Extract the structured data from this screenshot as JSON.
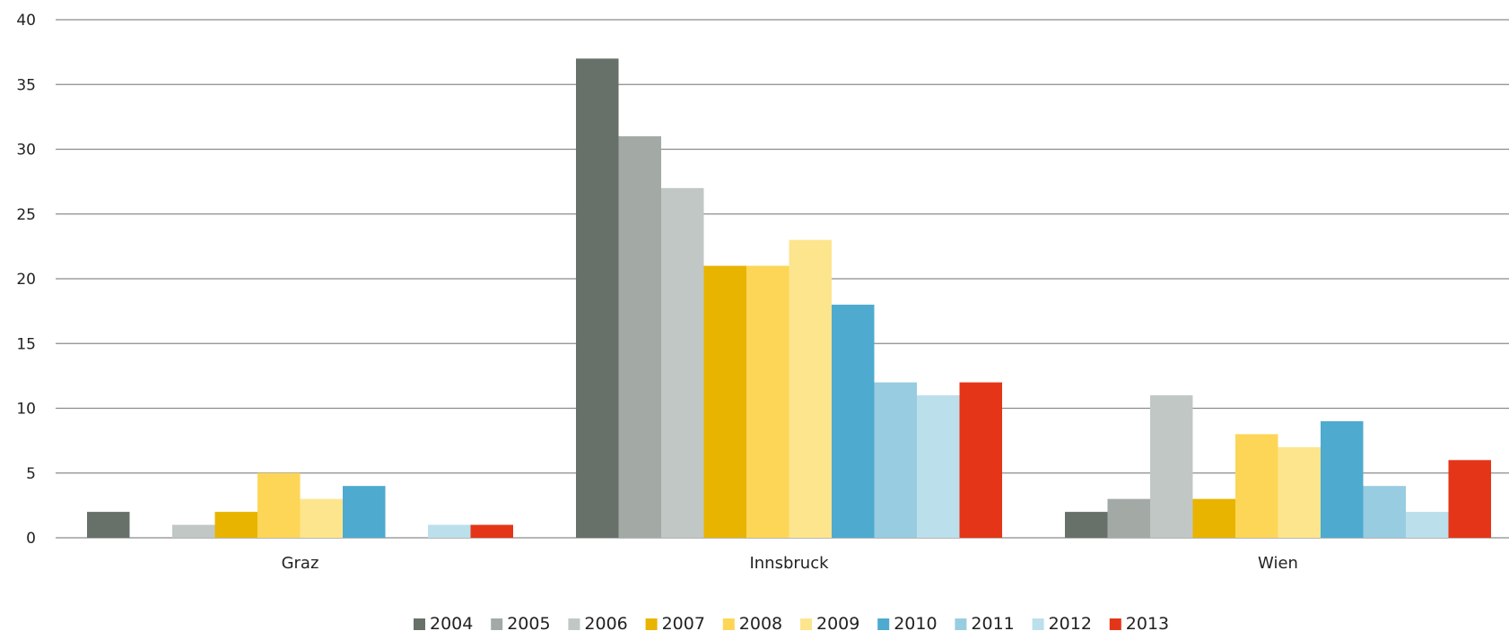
{
  "chart_data": {
    "type": "bar",
    "categories": [
      "Graz",
      "Innsbruck",
      "Wien"
    ],
    "series": [
      {
        "name": "2004",
        "color": "#67716a",
        "values": [
          2,
          37,
          2
        ]
      },
      {
        "name": "2005",
        "color": "#a3aaa6",
        "values": [
          0,
          31,
          3
        ]
      },
      {
        "name": "2006",
        "color": "#c1c7c5",
        "values": [
          1,
          27,
          11
        ]
      },
      {
        "name": "2007",
        "color": "#e8b400",
        "values": [
          2,
          21,
          3
        ]
      },
      {
        "name": "2008",
        "color": "#fdd657",
        "values": [
          5,
          21,
          8
        ]
      },
      {
        "name": "2009",
        "color": "#fde58e",
        "values": [
          3,
          23,
          7
        ]
      },
      {
        "name": "2010",
        "color": "#4eaacf",
        "values": [
          4,
          18,
          9
        ]
      },
      {
        "name": "2011",
        "color": "#98cce1",
        "values": [
          0,
          12,
          4
        ]
      },
      {
        "name": "2012",
        "color": "#bcdfec",
        "values": [
          1,
          11,
          2
        ]
      },
      {
        "name": "2013",
        "color": "#e43518",
        "values": [
          1,
          12,
          6
        ]
      }
    ],
    "ylim": [
      0,
      40
    ],
    "yticks": [
      0,
      5,
      10,
      15,
      20,
      25,
      30,
      35,
      40
    ],
    "grid": true,
    "legend_position": "bottom-center",
    "title": "",
    "xlabel": "",
    "ylabel": ""
  }
}
